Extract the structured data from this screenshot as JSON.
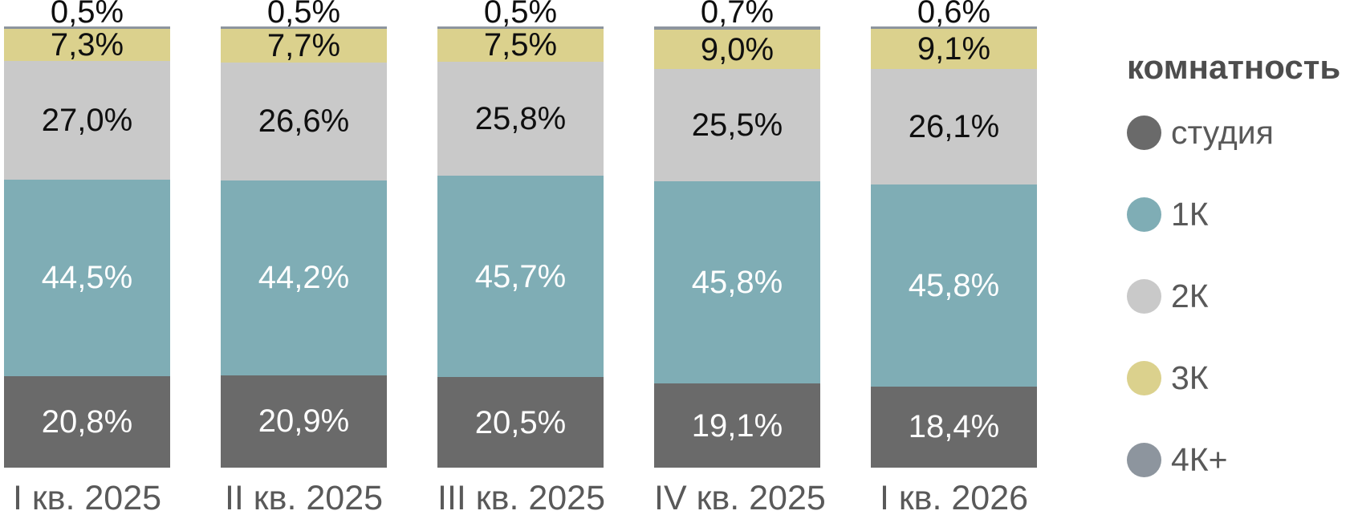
{
  "chart_data": {
    "type": "bar",
    "stacked": true,
    "orientation": "vertical",
    "unit": "%",
    "ylim": [
      0,
      100
    ],
    "grid": false,
    "axes_shown": false,
    "categories": [
      "I кв. 2025",
      "II кв. 2025",
      "III кв. 2025",
      "IV кв. 2025",
      "I кв. 2026"
    ],
    "series": [
      {
        "name": "студия",
        "color": "#6a6a6a",
        "label_color": "#ffffff",
        "values": [
          20.8,
          20.9,
          20.5,
          19.1,
          18.4
        ],
        "labels": [
          "20,8%",
          "20,9%",
          "20,5%",
          "19,1%",
          "18,4%"
        ]
      },
      {
        "name": "1К",
        "color": "#7fadb5",
        "label_color": "#ffffff",
        "values": [
          44.5,
          44.2,
          45.7,
          45.8,
          45.8
        ],
        "labels": [
          "44,5%",
          "44,2%",
          "45,7%",
          "45,8%",
          "45,8%"
        ]
      },
      {
        "name": "2К",
        "color": "#c9c9c9",
        "label_color": "#0f0f0f",
        "values": [
          27.0,
          26.6,
          25.8,
          25.5,
          26.1
        ],
        "labels": [
          "27,0%",
          "26,6%",
          "25,8%",
          "25,5%",
          "26,1%"
        ]
      },
      {
        "name": "3К",
        "color": "#dbd18d",
        "label_color": "#0f0f0f",
        "values": [
          7.3,
          7.7,
          7.5,
          9.0,
          9.1
        ],
        "labels": [
          "7,3%",
          "7,7%",
          "7,5%",
          "9,0%",
          "9,1%"
        ]
      },
      {
        "name": "4К+",
        "color": "#8d959e",
        "label_color": "#0f0f0f",
        "label_position": "above",
        "values": [
          0.5,
          0.5,
          0.5,
          0.7,
          0.6
        ],
        "labels": [
          "0,5%",
          "0,5%",
          "0,5%",
          "0,7%",
          "0,6%"
        ]
      }
    ],
    "legend": {
      "title": "комнатность",
      "position": "right"
    },
    "text_colors": {
      "axis_label": "#595959",
      "legend_title": "#4d4d4d",
      "legend_label": "#595959"
    }
  }
}
